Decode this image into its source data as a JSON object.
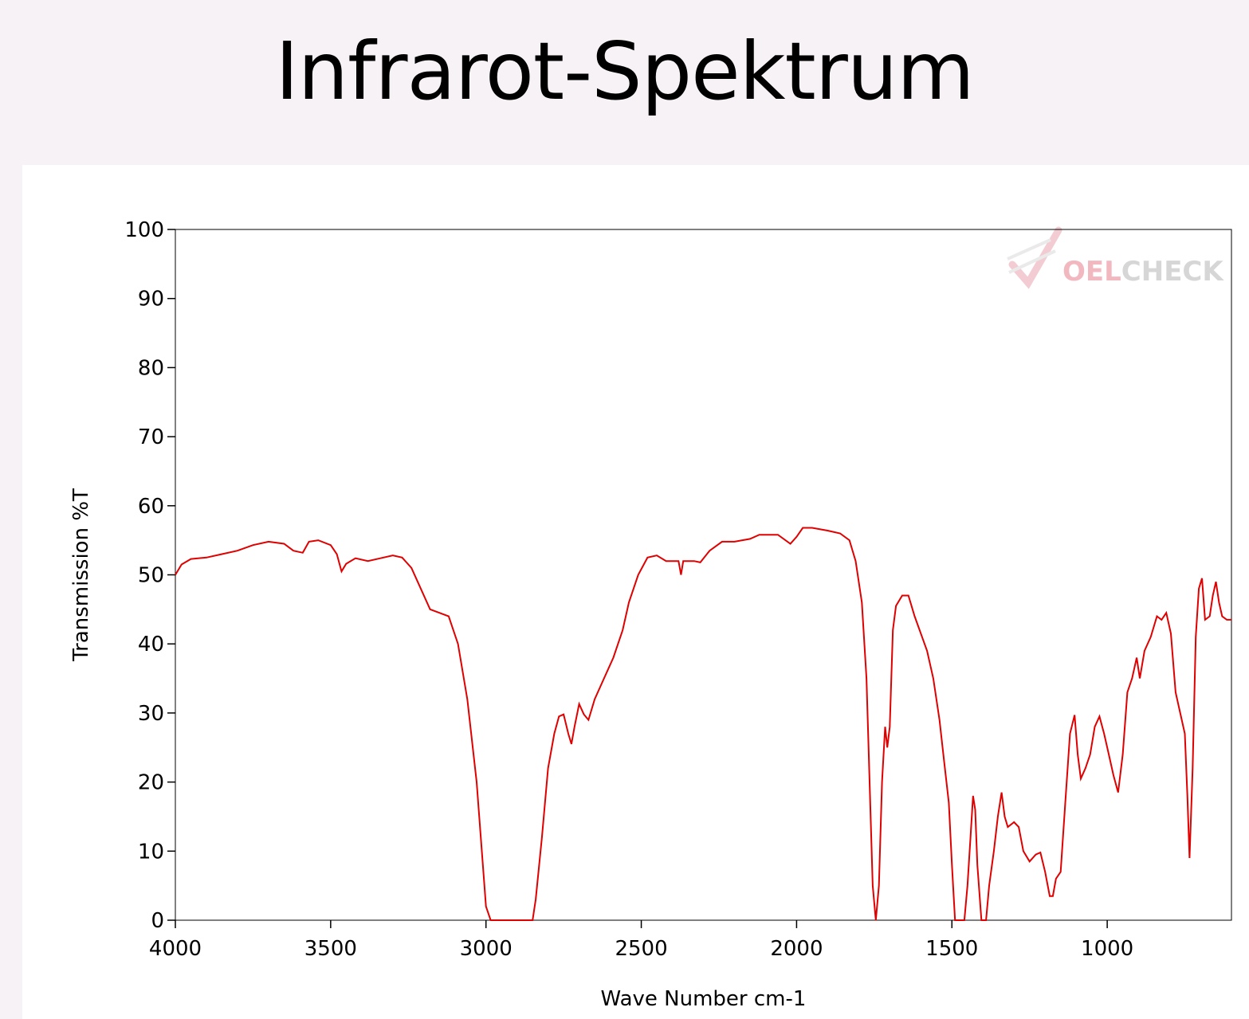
{
  "slide": {
    "title": "Infrarot-Spektrum"
  },
  "watermark": {
    "text_a": "OEL",
    "text_b": "CHECK",
    "color_a": "#f2b8c0",
    "color_b": "#d6d6d6"
  },
  "chart_data": {
    "type": "line",
    "title": "",
    "xlabel": "Wave Number cm-1",
    "ylabel": "Transmission %T",
    "xlim": [
      4000,
      600
    ],
    "ylim": [
      0,
      100
    ],
    "x_ticks": [
      4000,
      3500,
      3000,
      2500,
      2000,
      1500,
      1000
    ],
    "y_ticks": [
      0,
      10,
      20,
      30,
      40,
      50,
      60,
      70,
      80,
      90,
      100
    ],
    "grid": false,
    "line_color": "#e00000",
    "series": [
      {
        "name": "",
        "points": [
          [
            4000,
            50
          ],
          [
            3980,
            51.5
          ],
          [
            3950,
            52.3
          ],
          [
            3900,
            52.5
          ],
          [
            3850,
            53
          ],
          [
            3800,
            53.5
          ],
          [
            3750,
            54.3
          ],
          [
            3700,
            54.8
          ],
          [
            3650,
            54.5
          ],
          [
            3620,
            53.5
          ],
          [
            3590,
            53.2
          ],
          [
            3570,
            54.8
          ],
          [
            3540,
            55
          ],
          [
            3500,
            54.3
          ],
          [
            3480,
            53
          ],
          [
            3465,
            50.5
          ],
          [
            3450,
            51.6
          ],
          [
            3420,
            52.4
          ],
          [
            3380,
            52
          ],
          [
            3340,
            52.4
          ],
          [
            3300,
            52.8
          ],
          [
            3270,
            52.5
          ],
          [
            3240,
            51
          ],
          [
            3210,
            48
          ],
          [
            3180,
            45
          ],
          [
            3150,
            44.5
          ],
          [
            3120,
            44
          ],
          [
            3090,
            40
          ],
          [
            3060,
            32
          ],
          [
            3030,
            20
          ],
          [
            3010,
            8
          ],
          [
            3000,
            2
          ],
          [
            2985,
            0
          ],
          [
            2850,
            0
          ],
          [
            2840,
            3
          ],
          [
            2820,
            12
          ],
          [
            2800,
            22
          ],
          [
            2780,
            27
          ],
          [
            2765,
            29.5
          ],
          [
            2750,
            29.8
          ],
          [
            2735,
            27
          ],
          [
            2725,
            25.5
          ],
          [
            2715,
            28
          ],
          [
            2700,
            31.3
          ],
          [
            2685,
            29.8
          ],
          [
            2670,
            29
          ],
          [
            2650,
            32
          ],
          [
            2620,
            35
          ],
          [
            2590,
            38
          ],
          [
            2560,
            42
          ],
          [
            2540,
            46
          ],
          [
            2510,
            50
          ],
          [
            2480,
            52.5
          ],
          [
            2450,
            52.8
          ],
          [
            2420,
            52
          ],
          [
            2380,
            52
          ],
          [
            2372,
            50
          ],
          [
            2365,
            52
          ],
          [
            2330,
            52
          ],
          [
            2310,
            51.8
          ],
          [
            2280,
            53.5
          ],
          [
            2240,
            54.8
          ],
          [
            2200,
            54.8
          ],
          [
            2150,
            55.2
          ],
          [
            2120,
            55.8
          ],
          [
            2060,
            55.8
          ],
          [
            2020,
            54.5
          ],
          [
            2000,
            55.5
          ],
          [
            1980,
            56.8
          ],
          [
            1950,
            56.8
          ],
          [
            1900,
            56.4
          ],
          [
            1860,
            56
          ],
          [
            1830,
            55
          ],
          [
            1810,
            52
          ],
          [
            1790,
            46
          ],
          [
            1775,
            35
          ],
          [
            1765,
            20
          ],
          [
            1755,
            5
          ],
          [
            1745,
            0
          ],
          [
            1735,
            5
          ],
          [
            1725,
            20
          ],
          [
            1715,
            28
          ],
          [
            1708,
            25
          ],
          [
            1700,
            28
          ],
          [
            1690,
            42
          ],
          [
            1680,
            45.5
          ],
          [
            1660,
            47
          ],
          [
            1640,
            47
          ],
          [
            1620,
            44
          ],
          [
            1600,
            41.5
          ],
          [
            1580,
            39
          ],
          [
            1560,
            35
          ],
          [
            1540,
            29
          ],
          [
            1525,
            23
          ],
          [
            1510,
            17
          ],
          [
            1500,
            8
          ],
          [
            1490,
            0
          ],
          [
            1460,
            0
          ],
          [
            1450,
            5
          ],
          [
            1440,
            12
          ],
          [
            1432,
            18
          ],
          [
            1425,
            16
          ],
          [
            1418,
            8
          ],
          [
            1405,
            0
          ],
          [
            1390,
            0
          ],
          [
            1380,
            5
          ],
          [
            1365,
            10
          ],
          [
            1352,
            15
          ],
          [
            1340,
            18.5
          ],
          [
            1330,
            15
          ],
          [
            1320,
            13.5
          ],
          [
            1300,
            14.2
          ],
          [
            1285,
            13.5
          ],
          [
            1270,
            10
          ],
          [
            1250,
            8.5
          ],
          [
            1230,
            9.5
          ],
          [
            1215,
            9.8
          ],
          [
            1200,
            7
          ],
          [
            1185,
            3.5
          ],
          [
            1175,
            3.5
          ],
          [
            1165,
            6
          ],
          [
            1150,
            7
          ],
          [
            1135,
            17
          ],
          [
            1120,
            27
          ],
          [
            1105,
            29.7
          ],
          [
            1095,
            24
          ],
          [
            1085,
            20.5
          ],
          [
            1070,
            22
          ],
          [
            1055,
            24
          ],
          [
            1040,
            28
          ],
          [
            1025,
            29.5
          ],
          [
            1010,
            27
          ],
          [
            995,
            24
          ],
          [
            980,
            21
          ],
          [
            965,
            18.5
          ],
          [
            950,
            24
          ],
          [
            935,
            33
          ],
          [
            920,
            35
          ],
          [
            905,
            38
          ],
          [
            895,
            35
          ],
          [
            880,
            39
          ],
          [
            860,
            41
          ],
          [
            840,
            44
          ],
          [
            825,
            43.5
          ],
          [
            810,
            44.5
          ],
          [
            795,
            41.5
          ],
          [
            780,
            33
          ],
          [
            765,
            30
          ],
          [
            750,
            27
          ],
          [
            742,
            18
          ],
          [
            735,
            9
          ],
          [
            725,
            22
          ],
          [
            715,
            41
          ],
          [
            705,
            48
          ],
          [
            695,
            49.5
          ],
          [
            685,
            43.5
          ],
          [
            670,
            44
          ],
          [
            660,
            47
          ],
          [
            650,
            49
          ],
          [
            640,
            46
          ],
          [
            630,
            44
          ],
          [
            615,
            43.5
          ],
          [
            600,
            43.5
          ]
        ]
      }
    ]
  }
}
